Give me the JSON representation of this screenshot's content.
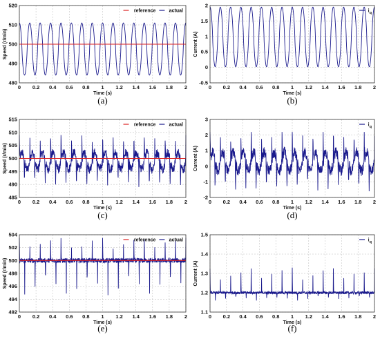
{
  "chart_data": [
    {
      "type": "line",
      "caption": "(a)",
      "xlabel": "Time (s)",
      "ylabel": "Speed (r/min)",
      "xlim": [
        0,
        2
      ],
      "ylim": [
        480,
        520
      ],
      "xticks": [
        "0",
        "0.2",
        "0.4",
        "0.6",
        "0.8",
        "1",
        "1.2",
        "1.4",
        "1.6",
        "1.8",
        "2"
      ],
      "yticks": [
        "480",
        "490",
        "500",
        "510",
        "520"
      ],
      "grid": true,
      "legend_position": "top-right",
      "series": [
        {
          "name": "reference",
          "color": "#dd2222",
          "kind": "constant",
          "value": 500
        },
        {
          "name": "actual",
          "color": "#1a1a8c",
          "kind": "periodic",
          "period": 0.125,
          "min": 484,
          "max": 511,
          "shape": "smooth"
        }
      ]
    },
    {
      "type": "line",
      "caption": "(b)",
      "xlabel": "Time (s)",
      "ylabel": "Current (A)",
      "xlim": [
        0,
        2
      ],
      "ylim": [
        -0.5,
        2
      ],
      "xticks": [
        "0",
        "0.2",
        "0.4",
        "0.6",
        "0.8",
        "1",
        "1.2",
        "1.4",
        "1.6",
        "1.8",
        "2"
      ],
      "yticks": [
        "-0.5",
        "0",
        "0.5",
        "1",
        "1.5",
        "2"
      ],
      "grid": true,
      "legend_position": "top-right",
      "series": [
        {
          "name": "iq",
          "color": "#1a1a8c",
          "kind": "periodic",
          "period": 0.125,
          "min": 0.02,
          "max": 1.95,
          "shape": "smooth"
        }
      ]
    },
    {
      "type": "line",
      "caption": "(c)",
      "xlabel": "Time (s)",
      "ylabel": "Speed (r/min)",
      "xlim": [
        0,
        2
      ],
      "ylim": [
        485,
        515
      ],
      "xticks": [
        "0",
        "0.2",
        "0.4",
        "0.6",
        "0.8",
        "1",
        "1.2",
        "1.4",
        "1.6",
        "1.8",
        "2"
      ],
      "yticks": [
        "485",
        "490",
        "495",
        "500",
        "505",
        "510",
        "515"
      ],
      "grid": true,
      "legend_position": "top-right",
      "series": [
        {
          "name": "reference",
          "color": "#dd2222",
          "kind": "constant",
          "value": 500
        },
        {
          "name": "actual",
          "color": "#1a1a8c",
          "kind": "periodic",
          "period": 0.125,
          "min": 489,
          "max": 509,
          "shape": "spiky"
        }
      ]
    },
    {
      "type": "line",
      "caption": "(d)",
      "xlabel": "Time (s)",
      "ylabel": "Current (A)",
      "xlim": [
        0,
        2
      ],
      "ylim": [
        -2,
        3
      ],
      "xticks": [
        "0",
        "0.2",
        "0.4",
        "0.6",
        "0.8",
        "1",
        "1.2",
        "1.4",
        "1.6",
        "1.8",
        "2"
      ],
      "yticks": [
        "-2",
        "-1",
        "0",
        "1",
        "2",
        "3"
      ],
      "grid": true,
      "legend_position": "top-right",
      "series": [
        {
          "name": "iq",
          "color": "#1a1a8c",
          "kind": "periodic",
          "period": 0.125,
          "min": -1.6,
          "max": 2.2,
          "shape": "spiky"
        }
      ]
    },
    {
      "type": "line",
      "caption": "(e)",
      "xlabel": "Time (s)",
      "ylabel": "Speed (r/min)",
      "xlim": [
        0,
        2
      ],
      "ylim": [
        492,
        504
      ],
      "xticks": [
        "0",
        "0.2",
        "0.4",
        "0.6",
        "0.8",
        "1",
        "1.2",
        "1.4",
        "1.6",
        "1.8",
        "2"
      ],
      "yticks": [
        "492",
        "494",
        "496",
        "498",
        "500",
        "502",
        "504"
      ],
      "grid": true,
      "legend_position": "top-right",
      "series": [
        {
          "name": "reference",
          "color": "#dd2222",
          "kind": "constant",
          "value": 500
        },
        {
          "name": "actual",
          "color": "#1a1a8c",
          "kind": "periodic",
          "period": 0.125,
          "base": 500,
          "min": 494.5,
          "max": 503.5,
          "shape": "impulse"
        }
      ]
    },
    {
      "type": "line",
      "caption": "(f)",
      "xlabel": "Time (s)",
      "ylabel": "Current (A)",
      "xlim": [
        0,
        2
      ],
      "ylim": [
        1.1,
        1.5
      ],
      "xticks": [
        "0",
        "0.2",
        "0.4",
        "0.6",
        "0.8",
        "1",
        "1.2",
        "1.4",
        "1.6",
        "1.8",
        "2"
      ],
      "yticks": [
        "1.1",
        "1.2",
        "1.3",
        "1.4",
        "1.5"
      ],
      "grid": true,
      "legend_position": "top-right",
      "series": [
        {
          "name": "iq",
          "color": "#1a1a8c",
          "kind": "periodic",
          "period": 0.125,
          "base": 1.2,
          "min": 1.16,
          "max": 1.33,
          "shape": "impulse"
        }
      ]
    }
  ]
}
